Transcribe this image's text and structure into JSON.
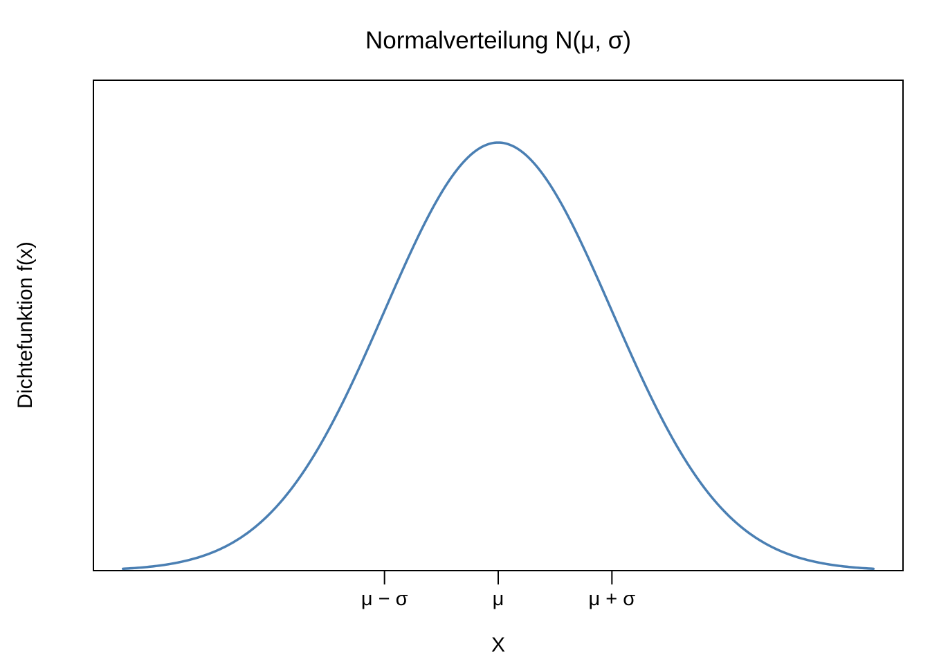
{
  "chart_data": {
    "type": "line",
    "title": "Normalverteilung N(μ, σ)",
    "xlabel": "X",
    "ylabel": "Dichtefunktion f(x)",
    "xlim": [
      -3.56,
      3.56
    ],
    "ylim": [
      0,
      0.457
    ],
    "x_range_plotted": [
      -3.3,
      3.3
    ],
    "x_ticks": [
      {
        "value": -1,
        "label": "μ − σ"
      },
      {
        "value": 0,
        "label": "μ"
      },
      {
        "value": 1,
        "label": "μ + σ"
      }
    ],
    "x_axis_segment": [
      -1,
      1
    ],
    "series": [
      {
        "function": "standard normal density",
        "mean": 0,
        "sd": 1,
        "color": "#4a7fb3"
      }
    ],
    "y_ticks": [],
    "grid": false,
    "legend": false
  }
}
